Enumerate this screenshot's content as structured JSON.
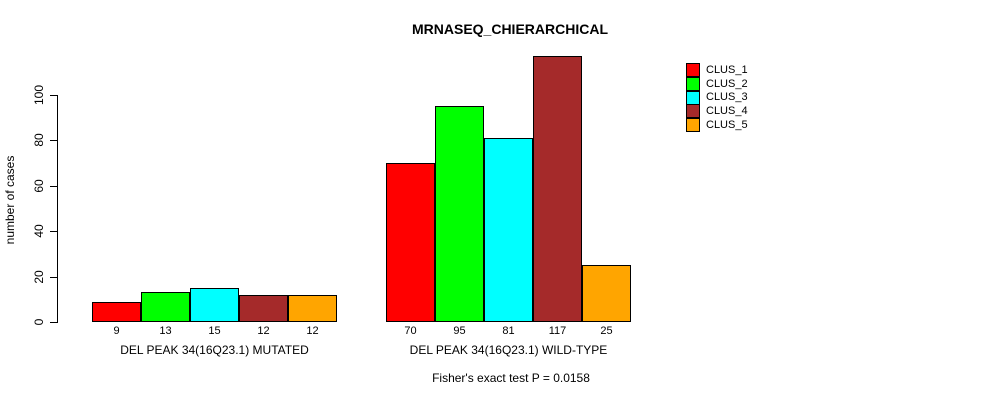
{
  "chart_data": {
    "type": "bar",
    "title": "MRNASEQ_CHIERARCHICAL",
    "ylabel": "number of cases",
    "xlabel": "",
    "yticks": [
      0,
      20,
      40,
      60,
      80,
      100
    ],
    "ylim": [
      0,
      120
    ],
    "grid": false,
    "legend_position": "right",
    "series": [
      {
        "name": "CLUS_1",
        "color": "#FF0000"
      },
      {
        "name": "CLUS_2",
        "color": "#00FF00"
      },
      {
        "name": "CLUS_3",
        "color": "#00FFFF"
      },
      {
        "name": "CLUS_4",
        "color": "#A52A2A"
      },
      {
        "name": "CLUS_5",
        "color": "#FFA500"
      }
    ],
    "groups": [
      {
        "label": "DEL PEAK 34(16Q23.1) MUTATED",
        "values": [
          9,
          13,
          15,
          12,
          12
        ]
      },
      {
        "label": "DEL PEAK 34(16Q23.1) WILD-TYPE",
        "values": [
          70,
          95,
          81,
          117,
          25
        ]
      }
    ],
    "annotation": "Fisher's exact test P = 0.0158"
  }
}
